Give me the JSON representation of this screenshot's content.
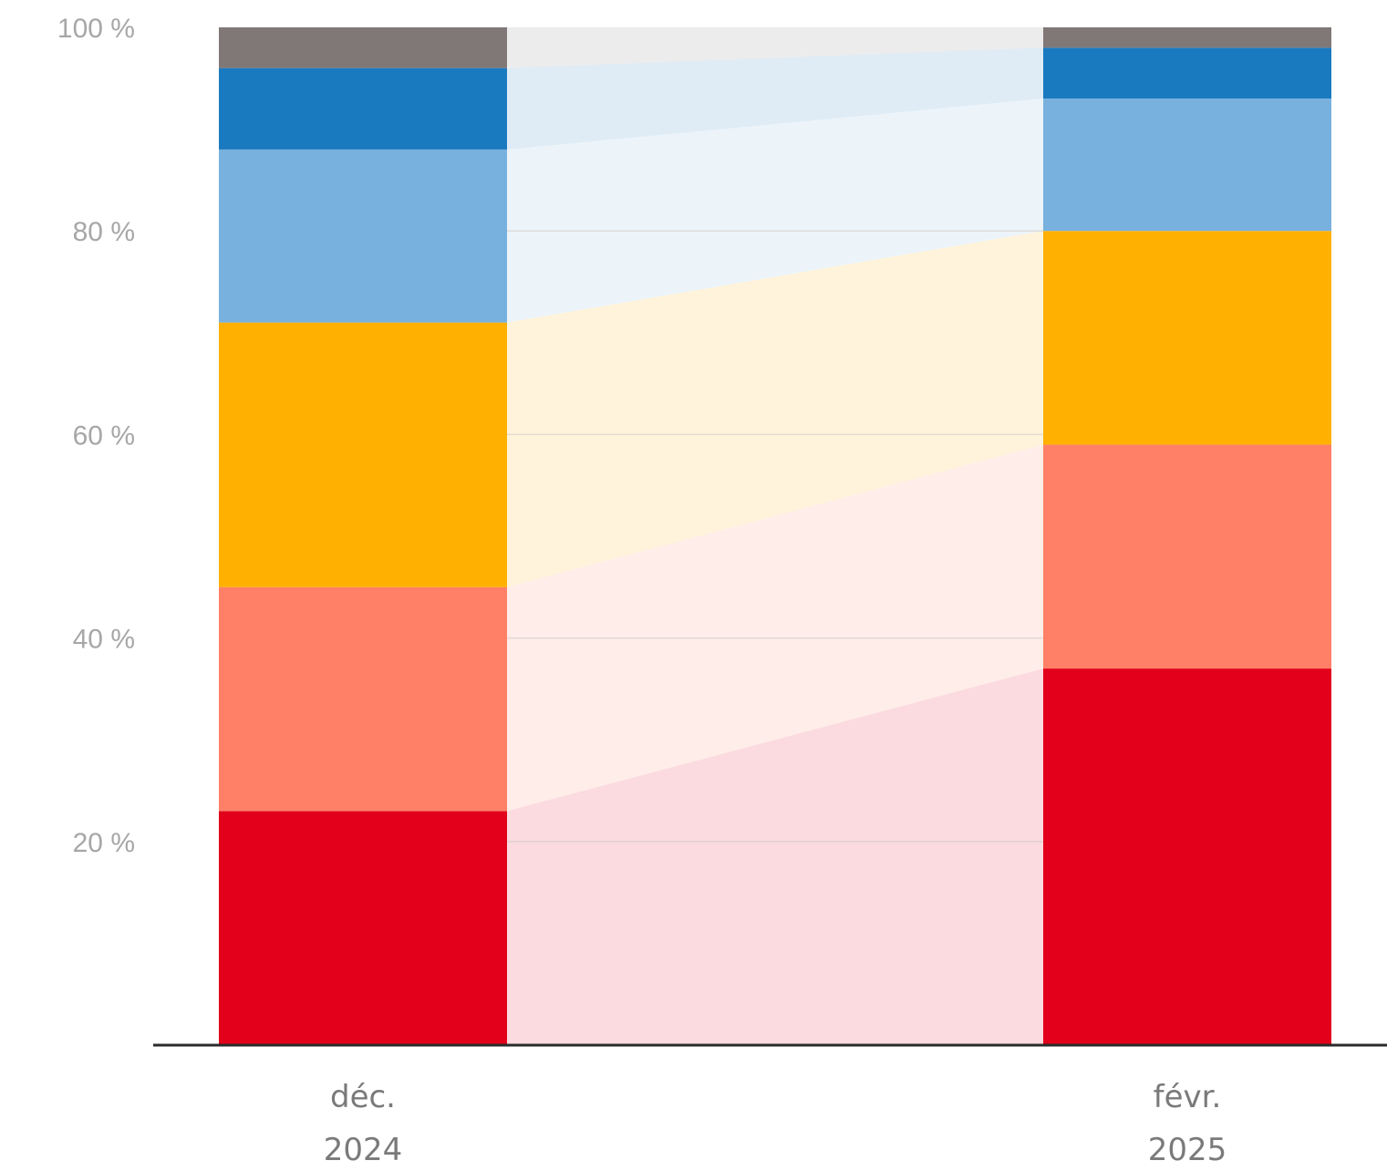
{
  "chart_data": {
    "type": "bar",
    "stacked": true,
    "categories": [
      {
        "line1": "déc.",
        "line2": "2024"
      },
      {
        "line1": "févr.",
        "line2": "2025"
      }
    ],
    "series": [
      {
        "color": "#e2001a",
        "values": [
          23,
          37
        ]
      },
      {
        "color": "#ff8066",
        "values": [
          22,
          22
        ]
      },
      {
        "color": "#ffb000",
        "values": [
          26,
          21
        ]
      },
      {
        "color": "#78b1dd",
        "values": [
          17,
          13
        ]
      },
      {
        "color": "#1a7ac0",
        "values": [
          8,
          5
        ]
      },
      {
        "color": "#807877",
        "values": [
          4,
          2
        ]
      }
    ],
    "ylim": [
      0,
      100
    ],
    "yticks": [
      {
        "value": 20,
        "label": "20 %"
      },
      {
        "value": 40,
        "label": "40 %"
      },
      {
        "value": 60,
        "label": "60 %"
      },
      {
        "value": 80,
        "label": "80 %"
      },
      {
        "value": 100,
        "label": "100 %"
      }
    ],
    "connector_areas": true,
    "grid": true,
    "legend": "none"
  }
}
